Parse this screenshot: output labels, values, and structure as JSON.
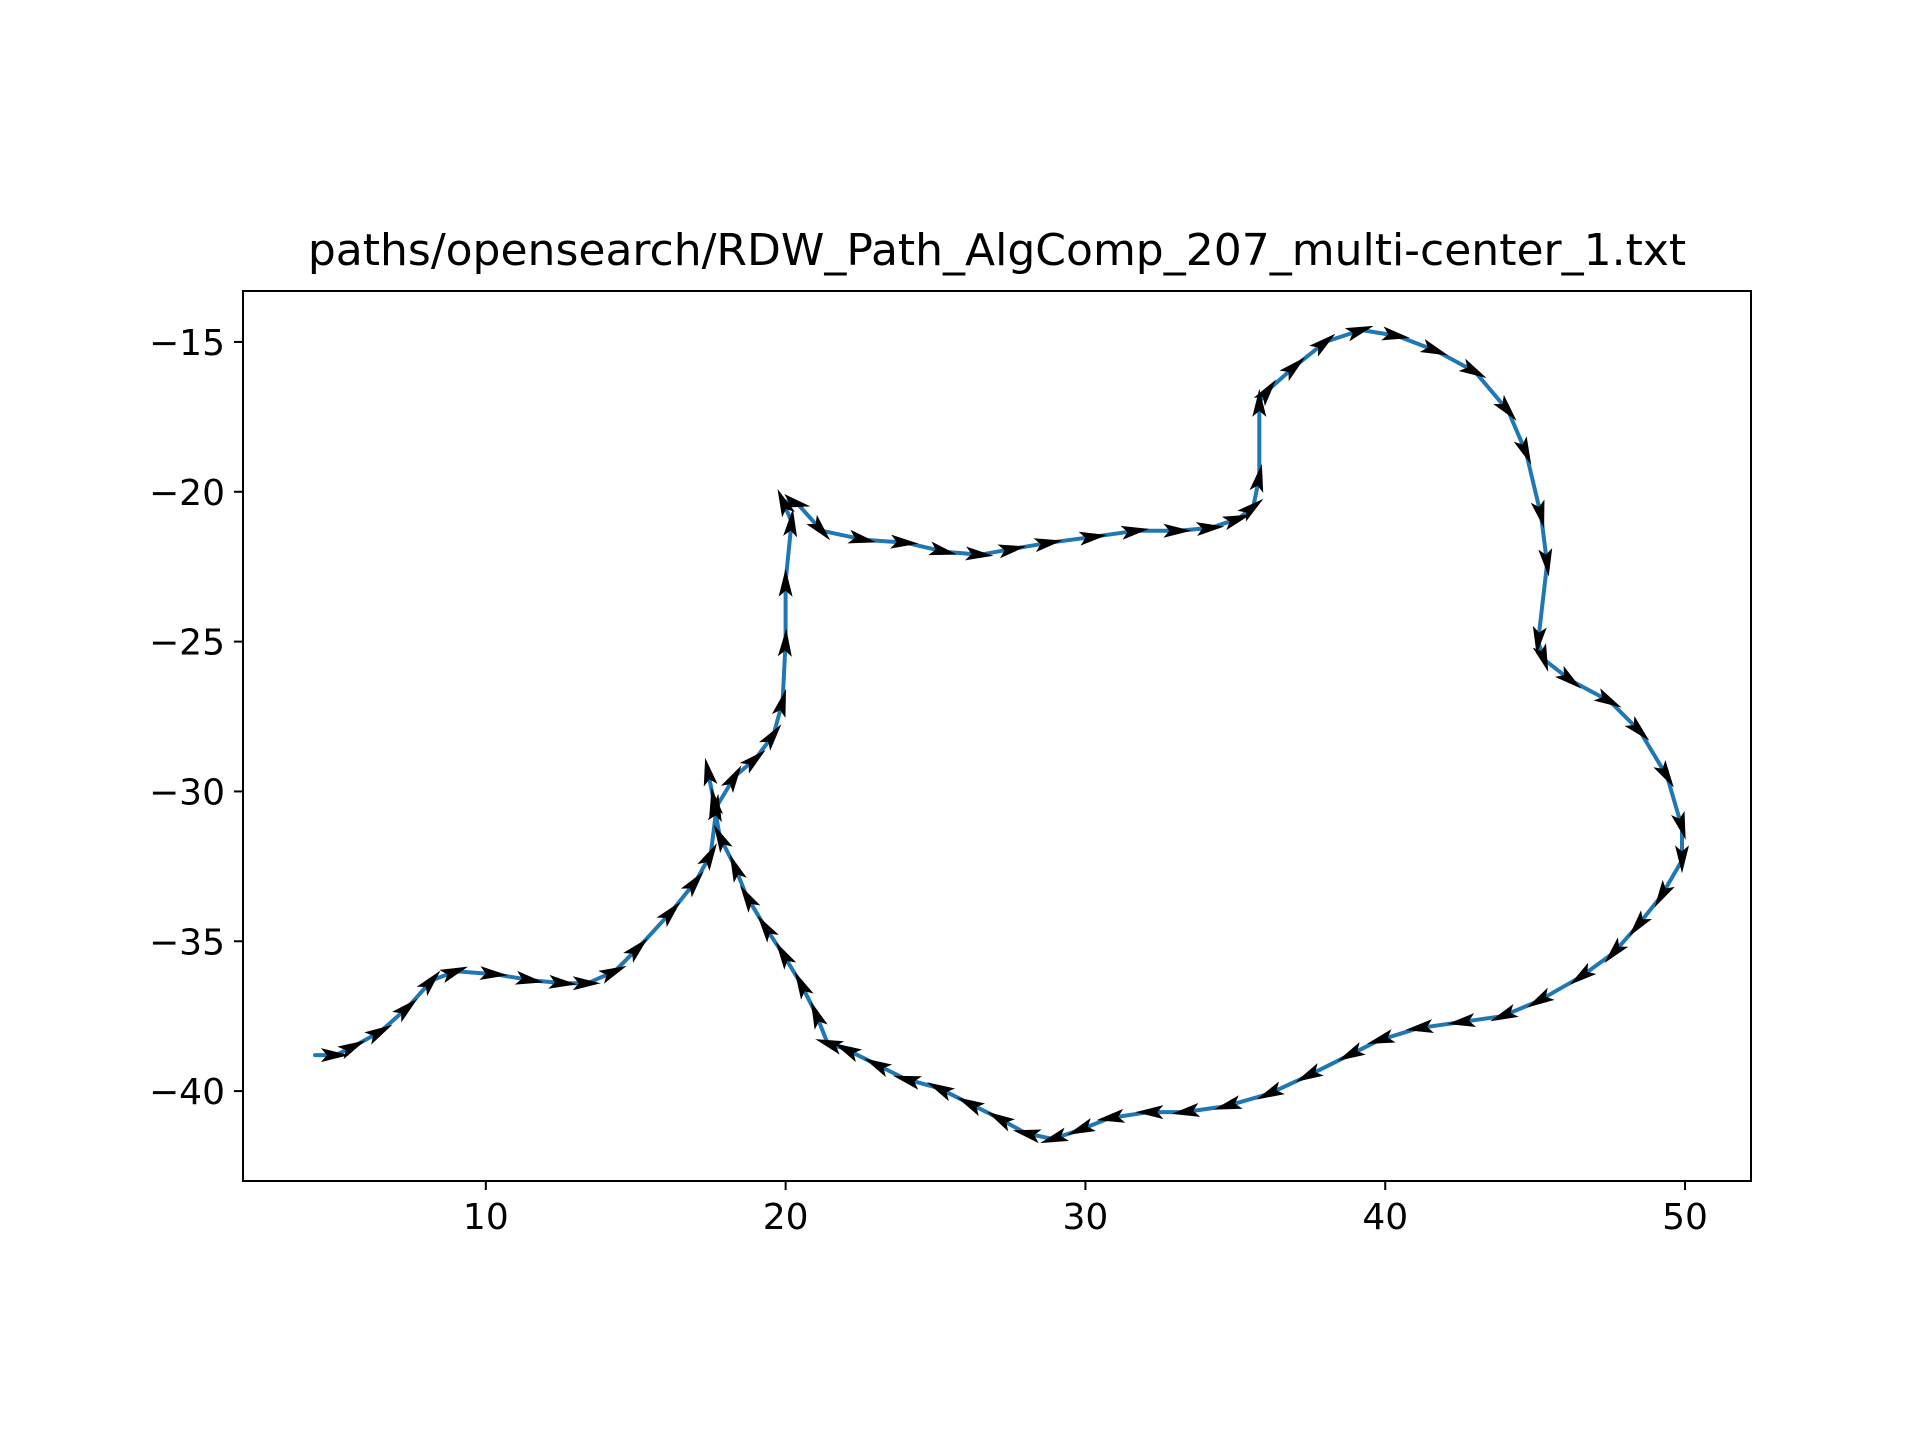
{
  "chart_data": {
    "type": "line",
    "title": "paths/opensearch/RDW_Path_AlgComp_207_multi-center_1.txt",
    "xlabel": "",
    "ylabel": "",
    "xlim": [
      1.9,
      52.2
    ],
    "ylim": [
      -43.0,
      -13.3
    ],
    "xticks": [
      10,
      20,
      30,
      40,
      50
    ],
    "yticks": [
      -15,
      -20,
      -25,
      -30,
      -35,
      -40
    ],
    "xtick_labels": [
      "10",
      "20",
      "30",
      "40",
      "50"
    ],
    "ytick_labels": [
      "−15",
      "−20",
      "−25",
      "−30",
      "−35",
      "−40"
    ],
    "grid": false,
    "series": [
      {
        "color": "#1f77b4",
        "x": [
          4.3,
          5.0,
          5.6,
          6.5,
          7.4,
          8.2,
          9.0,
          10.3,
          11.5,
          12.6,
          13.4,
          14.3,
          15.1,
          16.2,
          17.0,
          17.5,
          17.7,
          18.3,
          19.0,
          19.6,
          19.9,
          20.0,
          20.0,
          20.2,
          19.9,
          20.4,
          21.2,
          22.6,
          24.0,
          25.3,
          26.5,
          27.6,
          28.8,
          30.3,
          31.7,
          33.1,
          34.2,
          35.1,
          35.6,
          35.8,
          35.8,
          36.1,
          37.0,
          38.0,
          39.2,
          40.4,
          41.7,
          43.0,
          44.1,
          44.7,
          45.2,
          45.4,
          45.1,
          45.3,
          46.2,
          47.5,
          48.5,
          49.4,
          49.9,
          49.9,
          49.2,
          48.4,
          47.6,
          46.5,
          45.1,
          43.9,
          42.5,
          41.1,
          39.8,
          38.8,
          37.4,
          36.1,
          34.7,
          33.3,
          32.1,
          30.8,
          29.8,
          28.9,
          28.0,
          27.1,
          26.1,
          25.1,
          24.0,
          23.0,
          22.0,
          21.4,
          21.0,
          20.5,
          19.9,
          19.3,
          18.7,
          18.3,
          17.8,
          17.6,
          17.4
        ],
        "y": [
          -38.8,
          -38.8,
          -38.5,
          -38.0,
          -37.2,
          -36.3,
          -36.0,
          -36.1,
          -36.3,
          -36.4,
          -36.4,
          -36.0,
          -35.2,
          -34.0,
          -33.0,
          -32.1,
          -30.5,
          -29.5,
          -28.9,
          -28.1,
          -27.0,
          -25.0,
          -23.0,
          -21.0,
          -20.3,
          -20.4,
          -21.3,
          -21.6,
          -21.7,
          -22.0,
          -22.1,
          -21.9,
          -21.7,
          -21.5,
          -21.3,
          -21.3,
          -21.2,
          -20.9,
          -20.5,
          -19.5,
          -17.0,
          -16.6,
          -15.8,
          -15.0,
          -14.6,
          -14.8,
          -15.3,
          -16.0,
          -17.3,
          -18.7,
          -20.8,
          -22.4,
          -25.0,
          -25.6,
          -26.3,
          -27.0,
          -28.0,
          -29.5,
          -31.2,
          -32.3,
          -33.5,
          -34.5,
          -35.4,
          -36.2,
          -37.0,
          -37.5,
          -37.7,
          -37.9,
          -38.3,
          -38.8,
          -39.5,
          -40.1,
          -40.5,
          -40.7,
          -40.7,
          -40.9,
          -41.3,
          -41.6,
          -41.4,
          -40.9,
          -40.4,
          -39.9,
          -39.6,
          -39.1,
          -38.6,
          -38.4,
          -37.4,
          -36.4,
          -35.4,
          -34.5,
          -33.5,
          -32.5,
          -31.5,
          -30.3,
          -29.3
        ]
      }
    ]
  }
}
